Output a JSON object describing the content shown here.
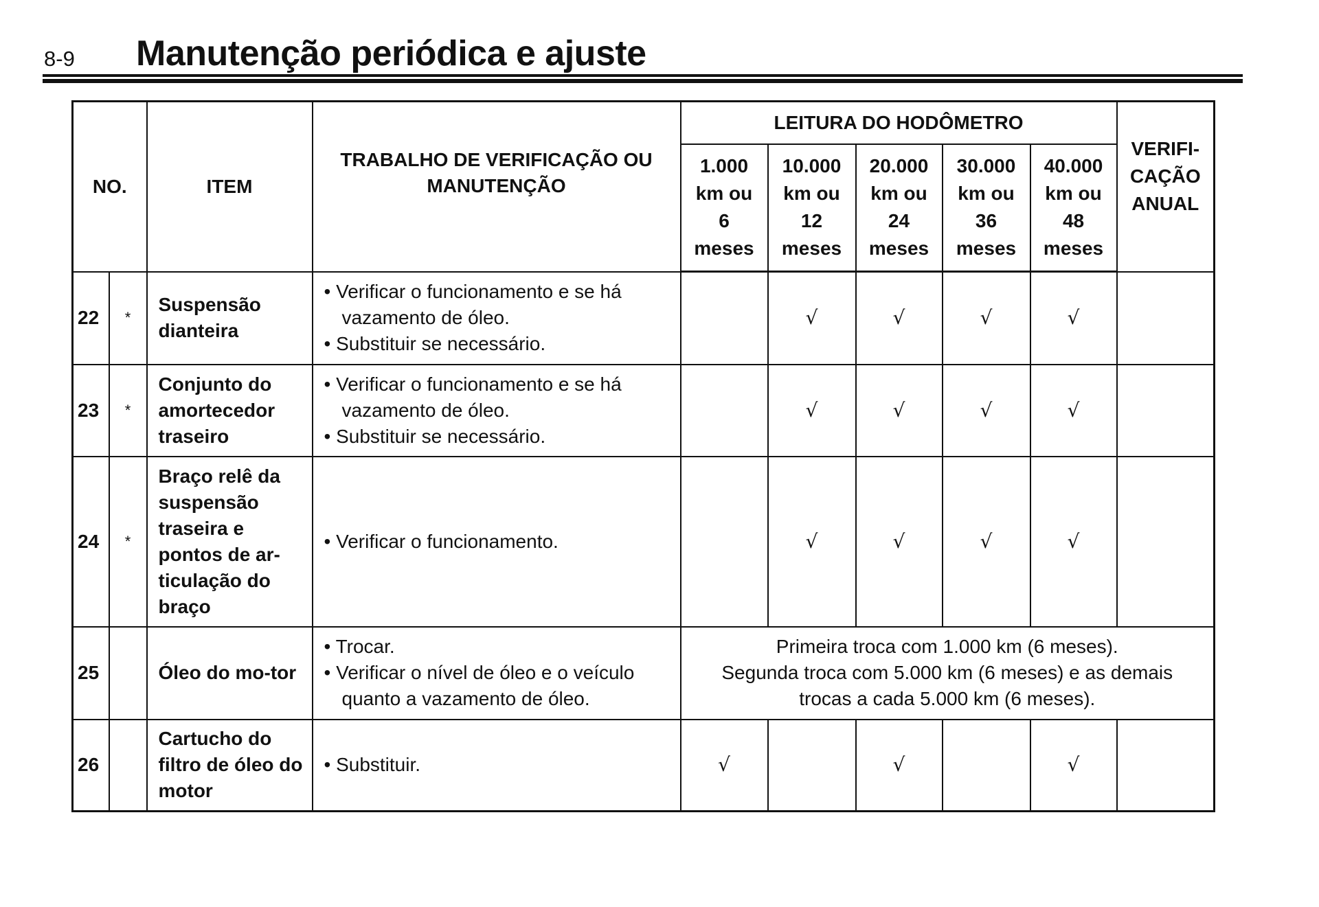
{
  "page_number": "8-9",
  "title": "Manutenção periódica e ajuste",
  "table": {
    "headers": {
      "no": "NO.",
      "item": "ITEM",
      "work": "TRABALHO DE VERIFICAÇÃO OU MANUTENÇÃO",
      "odometer": "LEITURA DO HODÔMETRO",
      "intervals": [
        {
          "km": "1.000",
          "ou": "km ou",
          "n": "6",
          "unit": "meses"
        },
        {
          "km": "10.000",
          "ou": "km ou",
          "n": "12",
          "unit": "meses"
        },
        {
          "km": "20.000",
          "ou": "km ou",
          "n": "24",
          "unit": "meses"
        },
        {
          "km": "30.000",
          "ou": "km ou",
          "n": "36",
          "unit": "meses"
        },
        {
          "km": "40.000",
          "ou": "km ou",
          "n": "48",
          "unit": "meses"
        }
      ],
      "annual": "VERIFI- CAÇÃO ANUAL"
    },
    "check_mark": "√",
    "rows": [
      {
        "no": "22",
        "star": "*",
        "item": "Suspensão dianteira",
        "work": [
          "• Verificar o funcionamento e se há vazamento de óleo.",
          "• Substituir se necessário."
        ],
        "checks": [
          false,
          true,
          true,
          true,
          true
        ],
        "annual": false
      },
      {
        "no": "23",
        "star": "*",
        "item": "Conjunto do amortecedor traseiro",
        "work": [
          "• Verificar o funcionamento e se há vazamento de óleo.",
          "• Substituir se necessário."
        ],
        "checks": [
          false,
          true,
          true,
          true,
          true
        ],
        "annual": false
      },
      {
        "no": "24",
        "star": "*",
        "item": "Braço relê da suspensão traseira e pontos de ar-ticulação do braço",
        "work": [
          "• Verificar o funcionamento."
        ],
        "checks": [
          false,
          true,
          true,
          true,
          true
        ],
        "annual": false
      },
      {
        "no": "25",
        "star": "",
        "item": "Óleo do mo-tor",
        "work": [
          "• Trocar.",
          "• Verificar o nível de óleo e o veículo quanto a vazamento de óleo."
        ],
        "note": [
          "Primeira troca com 1.000 km (6 meses).",
          "Segunda troca com 5.000 km (6 meses) e as demais trocas a cada 5.000 km (6 meses)."
        ]
      },
      {
        "no": "26",
        "star": "",
        "item": "Cartucho do filtro de óleo do motor",
        "work": [
          "• Substituir."
        ],
        "checks": [
          true,
          false,
          true,
          false,
          true
        ],
        "annual": false
      }
    ]
  }
}
